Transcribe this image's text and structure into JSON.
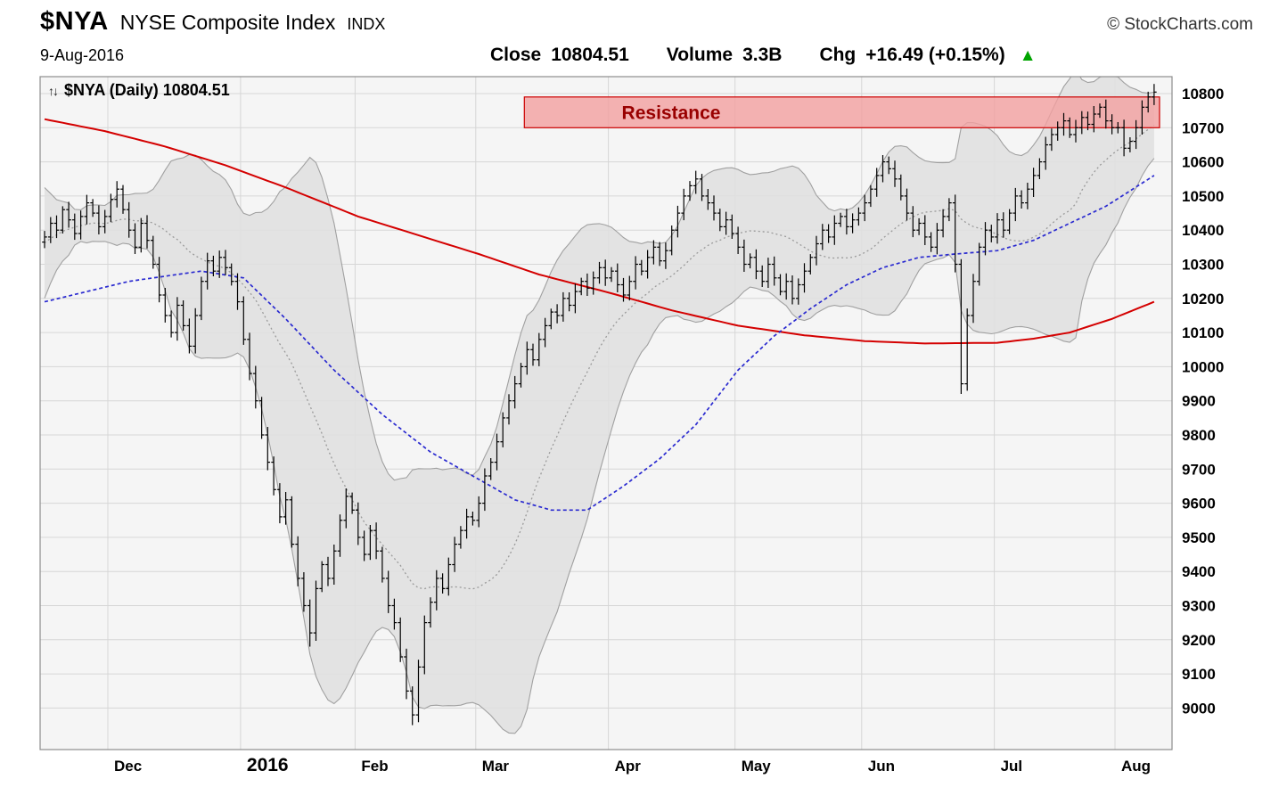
{
  "header": {
    "symbol": "$NYA",
    "name": "NYSE Composite Index",
    "exchange": "INDX",
    "brand": "© StockCharts.com",
    "date": "9-Aug-2016",
    "close_label": "Close",
    "close_value": "10804.51",
    "volume_label": "Volume",
    "volume_value": "3.3B",
    "chg_label": "Chg",
    "chg_value": "+16.49 (+0.15%)",
    "up_arrow_glyph": "▲",
    "up_arrow_color": "#00a400"
  },
  "chart_label": {
    "icon": "↑↓",
    "text": "$NYA (Daily) 10804.51"
  },
  "chart_data": {
    "type": "ohlc",
    "title": "$NYA (Daily) 10804.51",
    "timeframe": "Daily",
    "last_close": 10804.51,
    "plot_bg": "#f5f5f5",
    "grid_color": "#d6d6d6",
    "border_color": "#8c8c8c",
    "bar_color": "#000000",
    "y_axis": {
      "tick_start": 9000,
      "tick_end": 10800,
      "tick_step": 100,
      "ticks": [
        9000,
        9100,
        9200,
        9300,
        9400,
        9500,
        9600,
        9700,
        9800,
        9900,
        10000,
        10100,
        10200,
        10300,
        10400,
        10500,
        10600,
        10700,
        10800
      ]
    },
    "x_axis": {
      "labels": [
        {
          "label": "Dec",
          "index": 11,
          "emphasis": false
        },
        {
          "label": "2016",
          "index": 33,
          "emphasis": true
        },
        {
          "label": "Feb",
          "index": 52,
          "emphasis": false
        },
        {
          "label": "Mar",
          "index": 72,
          "emphasis": false
        },
        {
          "label": "Apr",
          "index": 94,
          "emphasis": false
        },
        {
          "label": "May",
          "index": 115,
          "emphasis": false
        },
        {
          "label": "Jun",
          "index": 136,
          "emphasis": false
        },
        {
          "label": "Jul",
          "index": 158,
          "emphasis": false
        },
        {
          "label": "Aug",
          "index": 178,
          "emphasis": false
        }
      ]
    },
    "resistance": {
      "label": "Resistance",
      "from": 10700,
      "to": 10790,
      "start_index": 80,
      "color": "#f2a0a0",
      "border": "#cc0000",
      "label_color": "#990000"
    },
    "pre_closes": [
      10150,
      10200,
      10250,
      10300,
      10280,
      10350,
      10400,
      10380,
      10420,
      10450,
      10430,
      10400,
      10380,
      10420,
      10440,
      10410,
      10390,
      10420,
      10400
    ],
    "closes": [
      10380,
      10420,
      10400,
      10460,
      10430,
      10390,
      10440,
      10480,
      10450,
      10410,
      10440,
      10490,
      10520,
      10460,
      10400,
      10350,
      10420,
      10370,
      10300,
      10210,
      10150,
      10100,
      10180,
      10120,
      10060,
      10150,
      10250,
      10310,
      10280,
      10320,
      10290,
      10250,
      10190,
      10080,
      9980,
      9900,
      9800,
      9720,
      9640,
      9560,
      9610,
      9480,
      9380,
      9300,
      9220,
      9350,
      9420,
      9380,
      9460,
      9550,
      9620,
      9580,
      9500,
      9450,
      9520,
      9460,
      9380,
      9300,
      9250,
      9150,
      9050,
      8980,
      9120,
      9250,
      9310,
      9380,
      9350,
      9420,
      9480,
      9520,
      9560,
      9550,
      9600,
      9680,
      9720,
      9780,
      9850,
      9900,
      9950,
      10000,
      10050,
      10020,
      10080,
      10120,
      10160,
      10150,
      10200,
      10180,
      10220,
      10250,
      10230,
      10260,
      10290,
      10260,
      10280,
      10240,
      10210,
      10250,
      10300,
      10280,
      10320,
      10350,
      10310,
      10340,
      10400,
      10450,
      10500,
      10530,
      10550,
      10500,
      10480,
      10450,
      10410,
      10430,
      10390,
      10350,
      10300,
      10320,
      10280,
      10250,
      10300,
      10260,
      10220,
      10250,
      10200,
      10240,
      10280,
      10320,
      10360,
      10400,
      10380,
      10420,
      10440,
      10410,
      10430,
      10450,
      10480,
      10520,
      10560,
      10600,
      10580,
      10550,
      10500,
      10450,
      10400,
      10420,
      10380,
      10350,
      10400,
      10440,
      10480,
      10300,
      9950,
      10150,
      10250,
      10350,
      10400,
      10380,
      10430,
      10400,
      10450,
      10500,
      10480,
      10520,
      10560,
      10600,
      10650,
      10680,
      10700,
      10720,
      10680,
      10700,
      10730,
      10710,
      10740,
      10760,
      10720,
      10700,
      10700,
      10640,
      10660,
      10700,
      10760,
      10790,
      10804.51
    ],
    "special_lows": {
      "44": 9180,
      "61": 8950,
      "152": 9920
    },
    "bollinger": {
      "window": 20,
      "mult": 2,
      "fill": "#e0e0e0",
      "line": "#a0a0a0",
      "mid_line": "#9a9a9a",
      "mid_style": "dotted"
    },
    "sma50": {
      "color": "#2a2ad0",
      "style": "dotted",
      "anchors": [
        [
          0,
          10190
        ],
        [
          14,
          10250
        ],
        [
          26,
          10280
        ],
        [
          33,
          10260
        ],
        [
          40,
          10140
        ],
        [
          48,
          9990
        ],
        [
          56,
          9860
        ],
        [
          64,
          9750
        ],
        [
          72,
          9670
        ],
        [
          78,
          9610
        ],
        [
          84,
          9580
        ],
        [
          90,
          9580
        ],
        [
          96,
          9650
        ],
        [
          102,
          9730
        ],
        [
          108,
          9830
        ],
        [
          115,
          9990
        ],
        [
          121,
          10090
        ],
        [
          127,
          10170
        ],
        [
          133,
          10240
        ],
        [
          139,
          10290
        ],
        [
          145,
          10320
        ],
        [
          151,
          10330
        ],
        [
          158,
          10340
        ],
        [
          164,
          10370
        ],
        [
          170,
          10420
        ],
        [
          176,
          10470
        ],
        [
          180,
          10515
        ],
        [
          184,
          10560
        ]
      ]
    },
    "sma200": {
      "color": "#d40000",
      "style": "solid",
      "anchors": [
        [
          0,
          10725
        ],
        [
          10,
          10690
        ],
        [
          20,
          10645
        ],
        [
          30,
          10590
        ],
        [
          40,
          10525
        ],
        [
          52,
          10440
        ],
        [
          62,
          10385
        ],
        [
          72,
          10330
        ],
        [
          82,
          10270
        ],
        [
          94,
          10215
        ],
        [
          104,
          10165
        ],
        [
          115,
          10120
        ],
        [
          126,
          10092
        ],
        [
          136,
          10075
        ],
        [
          146,
          10068
        ],
        [
          158,
          10070
        ],
        [
          164,
          10082
        ],
        [
          170,
          10100
        ],
        [
          177,
          10140
        ],
        [
          184,
          10190
        ]
      ]
    }
  }
}
